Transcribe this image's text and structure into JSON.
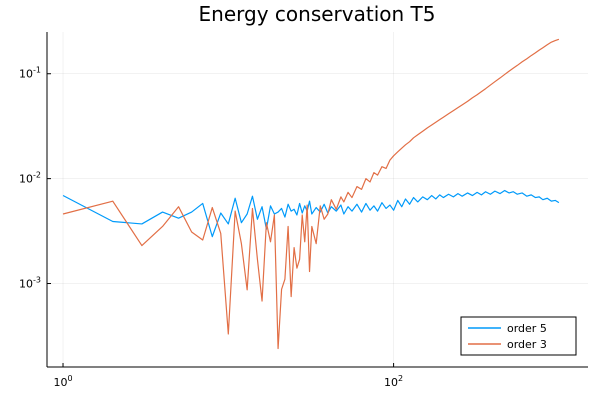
{
  "chart_data": {
    "type": "line",
    "title": "Energy conservation T5",
    "xlabel": "",
    "ylabel": "",
    "xscale": "log",
    "yscale": "log",
    "xlim": [
      0.8,
      1500
    ],
    "ylim": [
      0.00016,
      0.25
    ],
    "grid": true,
    "legend_position": "bottom-right",
    "x_ticks": [
      {
        "base": "10",
        "exp": "0",
        "value": 1
      },
      {
        "base": "10",
        "exp": "2",
        "value": 100
      }
    ],
    "y_ticks": [
      {
        "base": "10",
        "exp": "-3",
        "value": 0.001
      },
      {
        "base": "10",
        "exp": "-2",
        "value": 0.01
      },
      {
        "base": "10",
        "exp": "-1",
        "value": 0.1
      }
    ],
    "series": [
      {
        "name": "order 5",
        "color": "#009AFA",
        "points": [
          [
            1,
            0.0069
          ],
          [
            2,
            0.0039
          ],
          [
            3,
            0.0037
          ],
          [
            4,
            0.0048
          ],
          [
            5,
            0.0042
          ],
          [
            6,
            0.0048
          ],
          [
            7,
            0.0058
          ],
          [
            8,
            0.0028
          ],
          [
            9,
            0.0047
          ],
          [
            10,
            0.0037
          ],
          [
            11,
            0.0065
          ],
          [
            12,
            0.0038
          ],
          [
            13,
            0.0046
          ],
          [
            14,
            0.0068
          ],
          [
            15,
            0.0041
          ],
          [
            16,
            0.0054
          ],
          [
            17,
            0.0033
          ],
          [
            18,
            0.0055
          ],
          [
            19,
            0.0046
          ],
          [
            20,
            0.0048
          ],
          [
            21,
            0.0052
          ],
          [
            22,
            0.0043
          ],
          [
            23,
            0.0057
          ],
          [
            24,
            0.0049
          ],
          [
            25,
            0.0051
          ],
          [
            26,
            0.0045
          ],
          [
            27,
            0.0058
          ],
          [
            28,
            0.0047
          ],
          [
            29,
            0.0055
          ],
          [
            30,
            0.0049
          ],
          [
            31,
            0.0061
          ],
          [
            32,
            0.0046
          ],
          [
            34,
            0.0053
          ],
          [
            36,
            0.0048
          ],
          [
            38,
            0.0057
          ],
          [
            40,
            0.0047
          ],
          [
            42,
            0.0054
          ],
          [
            45,
            0.0049
          ],
          [
            48,
            0.0056
          ],
          [
            50,
            0.0046
          ],
          [
            53,
            0.0054
          ],
          [
            56,
            0.0049
          ],
          [
            60,
            0.0057
          ],
          [
            64,
            0.0048
          ],
          [
            68,
            0.0058
          ],
          [
            72,
            0.005
          ],
          [
            76,
            0.0055
          ],
          [
            80,
            0.0049
          ],
          [
            85,
            0.0059
          ],
          [
            90,
            0.0052
          ],
          [
            95,
            0.0056
          ],
          [
            100,
            0.005
          ],
          [
            106,
            0.0062
          ],
          [
            112,
            0.0054
          ],
          [
            118,
            0.0064
          ],
          [
            125,
            0.0057
          ],
          [
            132,
            0.0066
          ],
          [
            140,
            0.006
          ],
          [
            150,
            0.0067
          ],
          [
            160,
            0.0063
          ],
          [
            170,
            0.0069
          ],
          [
            180,
            0.0064
          ],
          [
            190,
            0.007
          ],
          [
            200,
            0.0066
          ],
          [
            215,
            0.0071
          ],
          [
            230,
            0.0067
          ],
          [
            245,
            0.0072
          ],
          [
            260,
            0.0068
          ],
          [
            280,
            0.0073
          ],
          [
            300,
            0.0069
          ],
          [
            320,
            0.0074
          ],
          [
            340,
            0.007
          ],
          [
            360,
            0.0075
          ],
          [
            385,
            0.0071
          ],
          [
            410,
            0.0076
          ],
          [
            440,
            0.0072
          ],
          [
            470,
            0.0077
          ],
          [
            500,
            0.0073
          ],
          [
            530,
            0.0075
          ],
          [
            560,
            0.0071
          ],
          [
            600,
            0.0073
          ],
          [
            640,
            0.0068
          ],
          [
            680,
            0.007
          ],
          [
            720,
            0.0066
          ],
          [
            760,
            0.0067
          ],
          [
            800,
            0.0063
          ],
          [
            850,
            0.0065
          ],
          [
            900,
            0.0061
          ],
          [
            950,
            0.0062
          ],
          [
            1000,
            0.0059
          ]
        ]
      },
      {
        "name": "order 3",
        "color": "#E26F46",
        "points": [
          [
            1,
            0.0046
          ],
          [
            2,
            0.0061
          ],
          [
            3,
            0.0023
          ],
          [
            4,
            0.0035
          ],
          [
            5,
            0.0054
          ],
          [
            6,
            0.0031
          ],
          [
            7,
            0.0026
          ],
          [
            8,
            0.0053
          ],
          [
            9,
            0.003
          ],
          [
            10,
            0.00033
          ],
          [
            11,
            0.0049
          ],
          [
            12,
            0.0024
          ],
          [
            13,
            0.00087
          ],
          [
            14,
            0.0052
          ],
          [
            15,
            0.0017
          ],
          [
            16,
            0.00068
          ],
          [
            17,
            0.0038
          ],
          [
            18,
            0.0025
          ],
          [
            19,
            0.0045
          ],
          [
            20,
            0.00024
          ],
          [
            21,
            0.00088
          ],
          [
            22,
            0.0011
          ],
          [
            23,
            0.0035
          ],
          [
            24,
            0.00075
          ],
          [
            25,
            0.0022
          ],
          [
            26,
            0.0014
          ],
          [
            27,
            0.0017
          ],
          [
            28,
            0.0045
          ],
          [
            29,
            0.0025
          ],
          [
            30,
            0.0056
          ],
          [
            31,
            0.0013
          ],
          [
            32,
            0.0035
          ],
          [
            34,
            0.0024
          ],
          [
            36,
            0.0055
          ],
          [
            38,
            0.0041
          ],
          [
            40,
            0.0046
          ],
          [
            42,
            0.0063
          ],
          [
            45,
            0.0051
          ],
          [
            48,
            0.0067
          ],
          [
            50,
            0.006
          ],
          [
            53,
            0.0074
          ],
          [
            56,
            0.0066
          ],
          [
            60,
            0.0084
          ],
          [
            64,
            0.0079
          ],
          [
            68,
            0.01
          ],
          [
            72,
            0.0093
          ],
          [
            76,
            0.0114
          ],
          [
            80,
            0.0108
          ],
          [
            85,
            0.013
          ],
          [
            90,
            0.0125
          ],
          [
            95,
            0.015
          ],
          [
            100,
            0.0165
          ],
          [
            106,
            0.018
          ],
          [
            112,
            0.0195
          ],
          [
            118,
            0.021
          ],
          [
            125,
            0.0225
          ],
          [
            132,
            0.0245
          ],
          [
            140,
            0.0262
          ],
          [
            150,
            0.0283
          ],
          [
            160,
            0.0305
          ],
          [
            170,
            0.0325
          ],
          [
            180,
            0.0345
          ],
          [
            190,
            0.0365
          ],
          [
            200,
            0.0385
          ],
          [
            215,
            0.0415
          ],
          [
            230,
            0.0445
          ],
          [
            245,
            0.0475
          ],
          [
            260,
            0.0505
          ],
          [
            280,
            0.0545
          ],
          [
            300,
            0.059
          ],
          [
            320,
            0.063
          ],
          [
            340,
            0.0675
          ],
          [
            360,
            0.072
          ],
          [
            385,
            0.078
          ],
          [
            410,
            0.084
          ],
          [
            440,
            0.091
          ],
          [
            470,
            0.0985
          ],
          [
            500,
            0.106
          ],
          [
            530,
            0.113
          ],
          [
            560,
            0.12
          ],
          [
            600,
            0.13
          ],
          [
            640,
            0.139
          ],
          [
            680,
            0.149
          ],
          [
            720,
            0.158
          ],
          [
            760,
            0.168
          ],
          [
            800,
            0.177
          ],
          [
            850,
            0.189
          ],
          [
            900,
            0.2
          ],
          [
            950,
            0.207
          ],
          [
            1000,
            0.213
          ]
        ]
      }
    ]
  }
}
